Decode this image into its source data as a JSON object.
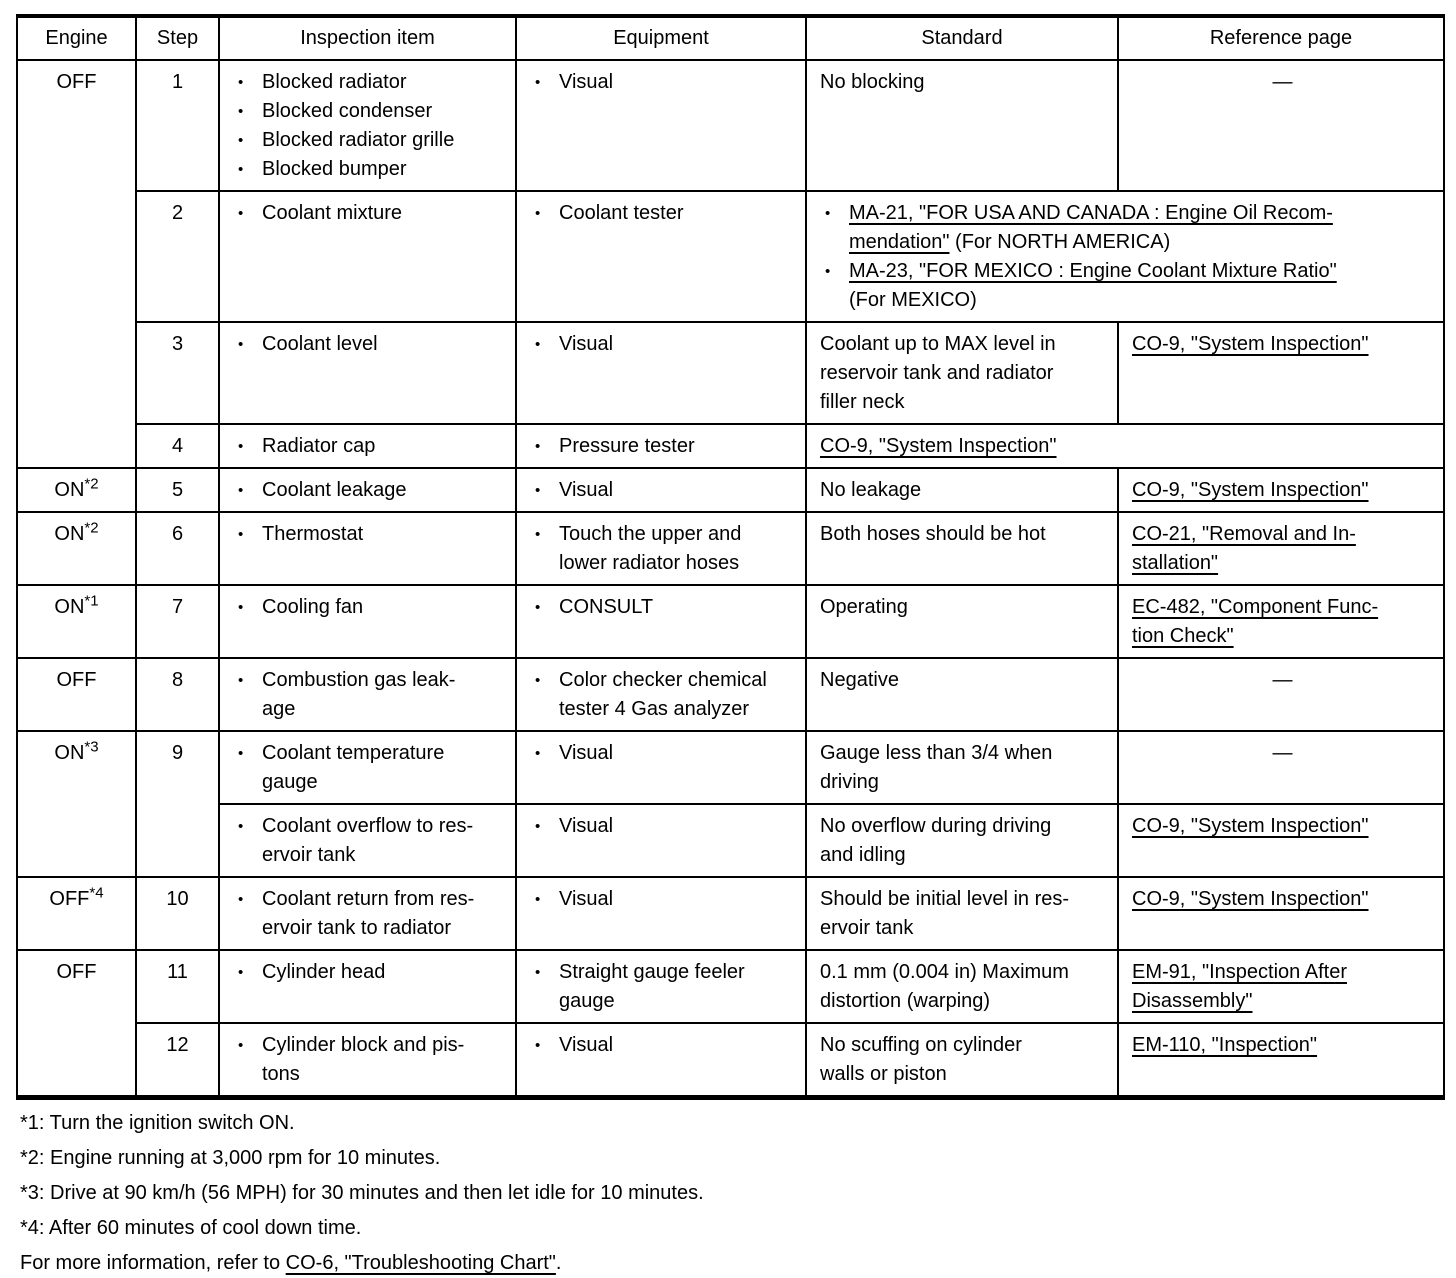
{
  "table": {
    "columns": [
      {
        "label": "Engine"
      },
      {
        "label": "Step"
      },
      {
        "label": "Inspection item"
      },
      {
        "label": "Equipment"
      },
      {
        "label": "Standard"
      },
      {
        "label": "Reference page"
      }
    ],
    "rows": [
      {
        "engine": {
          "text": "OFF",
          "sup": "",
          "rowspan": 4
        },
        "step": {
          "text": "1"
        },
        "inspection": [
          "Blocked radiator",
          "Blocked condenser",
          "Blocked radiator grille",
          "Blocked bumper"
        ],
        "equipment": [
          "Visual"
        ],
        "standard": {
          "text": [
            {
              "t": "No blocking"
            }
          ]
        },
        "reference": {
          "dash": "—"
        }
      },
      {
        "step": {
          "text": "2"
        },
        "inspection": [
          "Coolant mixture"
        ],
        "equipment": [
          "Coolant tester"
        ],
        "standard": {
          "colspan": 2,
          "bullets": [
            [
              {
                "t": "MA-21, \"FOR USA AND CANADA : Engine Oil Recom-\nmendation\"",
                "u": true
              },
              {
                "t": " (For NORTH AMERICA)"
              }
            ],
            [
              {
                "t": "MA-23, \"FOR MEXICO : Engine Coolant Mixture Ratio\"",
                "u": true
              },
              {
                "t": "\n(For MEXICO)"
              }
            ]
          ]
        }
      },
      {
        "step": {
          "text": "3"
        },
        "inspection": [
          "Coolant level"
        ],
        "equipment": [
          "Visual"
        ],
        "standard": {
          "text": [
            {
              "t": "Coolant up to MAX level in\nreservoir tank and radiator\nfiller neck"
            }
          ]
        },
        "reference": {
          "segments": [
            {
              "t": "CO-9, \"System Inspection\"",
              "u": true
            }
          ]
        }
      },
      {
        "step": {
          "text": "4"
        },
        "inspection": [
          "Radiator cap"
        ],
        "equipment": [
          "Pressure tester"
        ],
        "standard": {
          "colspan": 2,
          "text": [
            {
              "t": "CO-9, \"System Inspection\"",
              "u": true
            }
          ]
        }
      },
      {
        "engine": {
          "text": "ON",
          "sup": "*2"
        },
        "step": {
          "text": "5"
        },
        "inspection": [
          "Coolant leakage"
        ],
        "equipment": [
          "Visual"
        ],
        "standard": {
          "text": [
            {
              "t": "No leakage"
            }
          ]
        },
        "reference": {
          "segments": [
            {
              "t": "CO-9, \"System Inspection\"",
              "u": true
            }
          ]
        }
      },
      {
        "engine": {
          "text": "ON",
          "sup": "*2"
        },
        "step": {
          "text": "6"
        },
        "inspection": [
          "Thermostat"
        ],
        "equipment": [
          "Touch the upper and\nlower radiator hoses"
        ],
        "standard": {
          "text": [
            {
              "t": "Both hoses should be hot"
            }
          ]
        },
        "reference": {
          "segments": [
            {
              "t": "CO-21, \"Removal and In-\nstallation\"",
              "u": true
            }
          ]
        }
      },
      {
        "engine": {
          "text": "ON",
          "sup": "*1"
        },
        "step": {
          "text": "7"
        },
        "inspection": [
          "Cooling fan"
        ],
        "equipment": [
          "CONSULT"
        ],
        "standard": {
          "text": [
            {
              "t": "Operating"
            }
          ]
        },
        "reference": {
          "segments": [
            {
              "t": "EC-482, \"Component Func-\ntion Check\"",
              "u": true
            }
          ]
        }
      },
      {
        "engine": {
          "text": "OFF",
          "sup": ""
        },
        "step": {
          "text": "8"
        },
        "inspection": [
          "Combustion gas leak-\nage"
        ],
        "equipment": [
          "Color checker chemical\ntester 4 Gas analyzer"
        ],
        "standard": {
          "text": [
            {
              "t": "Negative"
            }
          ]
        },
        "reference": {
          "dash": "—"
        }
      },
      {
        "engine": {
          "text": "ON",
          "sup": "*3",
          "rowspan": 2
        },
        "step": {
          "text": "9",
          "rowspan": 2
        },
        "inspection": [
          "Coolant temperature\ngauge"
        ],
        "equipment": [
          "Visual"
        ],
        "standard": {
          "text": [
            {
              "t": "Gauge less than 3/4 when\ndriving"
            }
          ]
        },
        "reference": {
          "dash": "—"
        }
      },
      {
        "inspection": [
          "Coolant overflow to res-\nervoir tank"
        ],
        "equipment": [
          "Visual"
        ],
        "standard": {
          "text": [
            {
              "t": "No overflow during driving\nand idling"
            }
          ]
        },
        "reference": {
          "segments": [
            {
              "t": "CO-9, \"System Inspection\"",
              "u": true
            }
          ]
        }
      },
      {
        "engine": {
          "text": "OFF",
          "sup": "*4"
        },
        "step": {
          "text": "10"
        },
        "inspection": [
          "Coolant return from res-\nervoir tank to radiator"
        ],
        "equipment": [
          "Visual"
        ],
        "standard": {
          "text": [
            {
              "t": "Should be initial level in res-\nervoir tank"
            }
          ]
        },
        "reference": {
          "segments": [
            {
              "t": "CO-9, \"System Inspection\"",
              "u": true
            }
          ]
        }
      },
      {
        "engine": {
          "text": "OFF",
          "sup": "",
          "rowspan": 2
        },
        "step": {
          "text": "11"
        },
        "inspection": [
          "Cylinder head"
        ],
        "equipment": [
          "Straight gauge feeler\ngauge"
        ],
        "standard": {
          "text": [
            {
              "t": "0.1 mm (0.004 in) Maximum\ndistortion (warping)"
            }
          ]
        },
        "reference": {
          "segments": [
            {
              "t": "EM-91, \"Inspection After\nDisassembly\"",
              "u": true
            }
          ]
        }
      },
      {
        "step": {
          "text": "12"
        },
        "inspection": [
          "Cylinder block and pis-\ntons"
        ],
        "equipment": [
          "Visual"
        ],
        "standard": {
          "text": [
            {
              "t": "No scuffing on cylinder\nwalls or piston"
            }
          ]
        },
        "reference": {
          "segments": [
            {
              "t": "EM-110, \"Inspection\"",
              "u": true
            }
          ]
        }
      }
    ]
  },
  "footnotes": [
    {
      "segments": [
        {
          "t": "*1: Turn the ignition switch ON."
        }
      ]
    },
    {
      "segments": [
        {
          "t": "*2: Engine running at 3,000 rpm for 10 minutes."
        }
      ]
    },
    {
      "segments": [
        {
          "t": "*3: Drive at 90 km/h (56 MPH) for 30 minutes and then let idle for 10 minutes."
        }
      ]
    },
    {
      "segments": [
        {
          "t": "*4: After 60 minutes of cool down time."
        }
      ]
    },
    {
      "segments": [
        {
          "t": "For more information, refer to "
        },
        {
          "t": "CO-6, \"Troubleshooting Chart\"",
          "u": true
        },
        {
          "t": "."
        }
      ]
    }
  ]
}
